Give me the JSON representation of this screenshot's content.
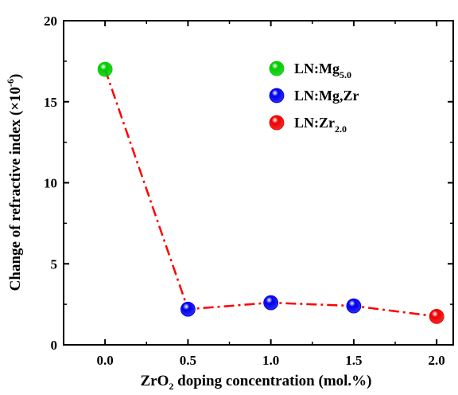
{
  "chart_data": {
    "type": "scatter",
    "xlabel": {
      "before": "ZrO",
      "sub": "2",
      "after": " doping concentration (mol.%)"
    },
    "ylabel": {
      "before": "Change of refractive index (×10",
      "sup": "-6",
      "after": ")"
    },
    "xlim": [
      -0.25,
      2.1
    ],
    "ylim": [
      0,
      20
    ],
    "x_ticks": [
      0.0,
      0.5,
      1.0,
      1.5,
      2.0
    ],
    "x_tick_labels": [
      "0.0",
      "0.5",
      "1.0",
      "1.5",
      "2.0"
    ],
    "y_ticks": [
      0,
      5,
      10,
      15,
      20
    ],
    "y_tick_labels": [
      "0",
      "5",
      "10",
      "15",
      "20"
    ],
    "grid": false,
    "legend_position": "top-right",
    "series": [
      {
        "name": "LN:Mg",
        "name_sub": "5.0",
        "color": "#00cc00",
        "points": [
          {
            "x": 0.0,
            "y": 17.0
          }
        ]
      },
      {
        "name": "LN:Mg,Zr",
        "name_sub": "",
        "color": "#0000ee",
        "points": [
          {
            "x": 0.5,
            "y": 2.2
          },
          {
            "x": 1.0,
            "y": 2.6
          },
          {
            "x": 1.5,
            "y": 2.4
          }
        ]
      },
      {
        "name": "LN:Zr",
        "name_sub": "2.0",
        "color": "#ee0000",
        "points": [
          {
            "x": 2.0,
            "y": 1.75
          }
        ]
      }
    ],
    "connecting_line": {
      "style": "dash-dot",
      "color": "#ff0000",
      "points": [
        {
          "x": 0.0,
          "y": 17.0
        },
        {
          "x": 0.5,
          "y": 2.2
        },
        {
          "x": 1.0,
          "y": 2.6
        },
        {
          "x": 1.5,
          "y": 2.4
        },
        {
          "x": 2.0,
          "y": 1.75
        }
      ]
    }
  }
}
